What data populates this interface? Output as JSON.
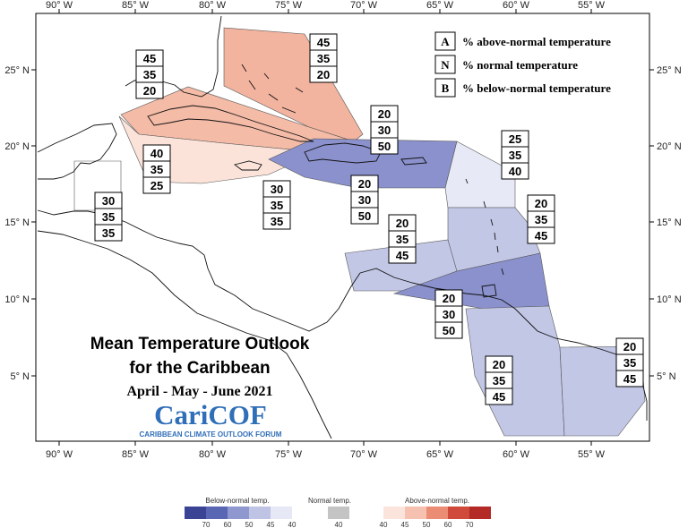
{
  "title": {
    "line1": "Mean Temperature Outlook",
    "line2": "for the Caribbean",
    "period": "April - May - June 2021"
  },
  "logo": {
    "name": "CariCOF",
    "subtitle": "CARIBBEAN CLIMATE OUTLOOK FORUM"
  },
  "axes": {
    "lon_ticks": [
      "90° W",
      "85° W",
      "80° W",
      "75° W",
      "70° W",
      "65° W",
      "60° W",
      "55° W"
    ],
    "lat_ticks": [
      "25° N",
      "20° N",
      "15° N",
      "10° N",
      "5° N"
    ]
  },
  "key": [
    {
      "letter": "A",
      "text": "% above-normal temperature"
    },
    {
      "letter": "N",
      "text": "% normal temperature"
    },
    {
      "letter": "B",
      "text": "% below-normal temperature"
    }
  ],
  "colorbar": {
    "below": {
      "title": "Below-normal temp.",
      "labels": [
        "70",
        "60",
        "50",
        "45",
        "40"
      ],
      "colors": [
        "#3b4494",
        "#5866b4",
        "#8f97cf",
        "#c0c4e4",
        "#e6e8f5"
      ]
    },
    "normal": {
      "title": "Normal temp.",
      "labels": [
        "40"
      ],
      "color": "#c4c4c4"
    },
    "above": {
      "title": "Above-normal temp.",
      "labels": [
        "40",
        "45",
        "50",
        "60",
        "70"
      ],
      "colors": [
        "#fbe4dc",
        "#f6c1b0",
        "#ea8d74",
        "#cf4a3a",
        "#b32a26"
      ]
    }
  },
  "regions": [
    {
      "id": "bahamas",
      "A": "45",
      "N": "35",
      "B": "20",
      "fill": "#f2b39f"
    },
    {
      "id": "cuba",
      "A": "45",
      "N": "35",
      "B": "20",
      "fill": "#f4bba7"
    },
    {
      "id": "jamaica-caymans",
      "A": "40",
      "N": "35",
      "B": "25",
      "fill": "#fbe3da"
    },
    {
      "id": "belize",
      "A": "30",
      "N": "35",
      "B": "35",
      "fill": "#ffffff"
    },
    {
      "id": "hispaniola-pr",
      "A": "20",
      "N": "30",
      "B": "50",
      "fill": "#8a91cc"
    },
    {
      "id": "central-caribbean",
      "A": "20",
      "N": "30",
      "B": "50",
      "fill": "#8a91cc"
    },
    {
      "id": "leewards-north",
      "A": "25",
      "N": "35",
      "B": "40",
      "fill": "#e7e9f6"
    },
    {
      "id": "leewards-south",
      "A": "20",
      "N": "35",
      "B": "45",
      "fill": "#c3c7e6"
    },
    {
      "id": "abc-islands",
      "A": "20",
      "N": "35",
      "B": "45",
      "fill": "#c3c7e6"
    },
    {
      "id": "trinidad-windwards",
      "A": "20",
      "N": "30",
      "B": "50",
      "fill": "#8a91cc"
    },
    {
      "id": "guyana",
      "A": "20",
      "N": "35",
      "B": "45",
      "fill": "#c3c7e6"
    },
    {
      "id": "suriname-guiana",
      "A": "20",
      "N": "35",
      "B": "45",
      "fill": "#c3c7e6"
    },
    {
      "id": "isolated-30-35-35",
      "A": "30",
      "N": "35",
      "B": "35",
      "fill": "#ffffff"
    }
  ]
}
